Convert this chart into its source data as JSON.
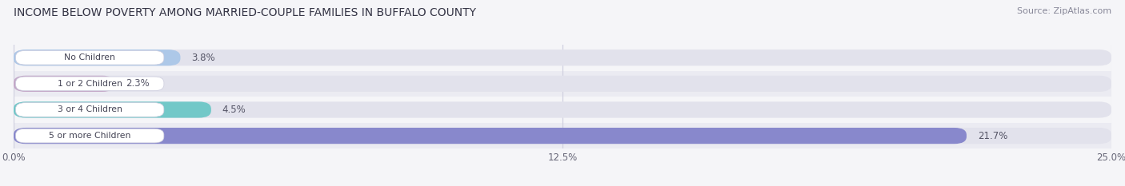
{
  "title": "INCOME BELOW POVERTY AMONG MARRIED-COUPLE FAMILIES IN BUFFALO COUNTY",
  "source": "Source: ZipAtlas.com",
  "categories": [
    "No Children",
    "1 or 2 Children",
    "3 or 4 Children",
    "5 or more Children"
  ],
  "values": [
    3.8,
    2.3,
    4.5,
    21.7
  ],
  "bar_colors": [
    "#adc8e8",
    "#c4a8c8",
    "#72c8c8",
    "#8888cc"
  ],
  "xlim": [
    0,
    25.0
  ],
  "xticks": [
    0.0,
    12.5,
    25.0
  ],
  "xtick_labels": [
    "0.0%",
    "12.5%",
    "25.0%"
  ],
  "background_color": "#f5f5f8",
  "bar_background_color": "#e2e2ec",
  "row_background_even": "#ebebf2",
  "row_background_odd": "#f5f5f8",
  "title_fontsize": 10,
  "source_fontsize": 8,
  "bar_height": 0.62,
  "value_fontsize": 8.5
}
